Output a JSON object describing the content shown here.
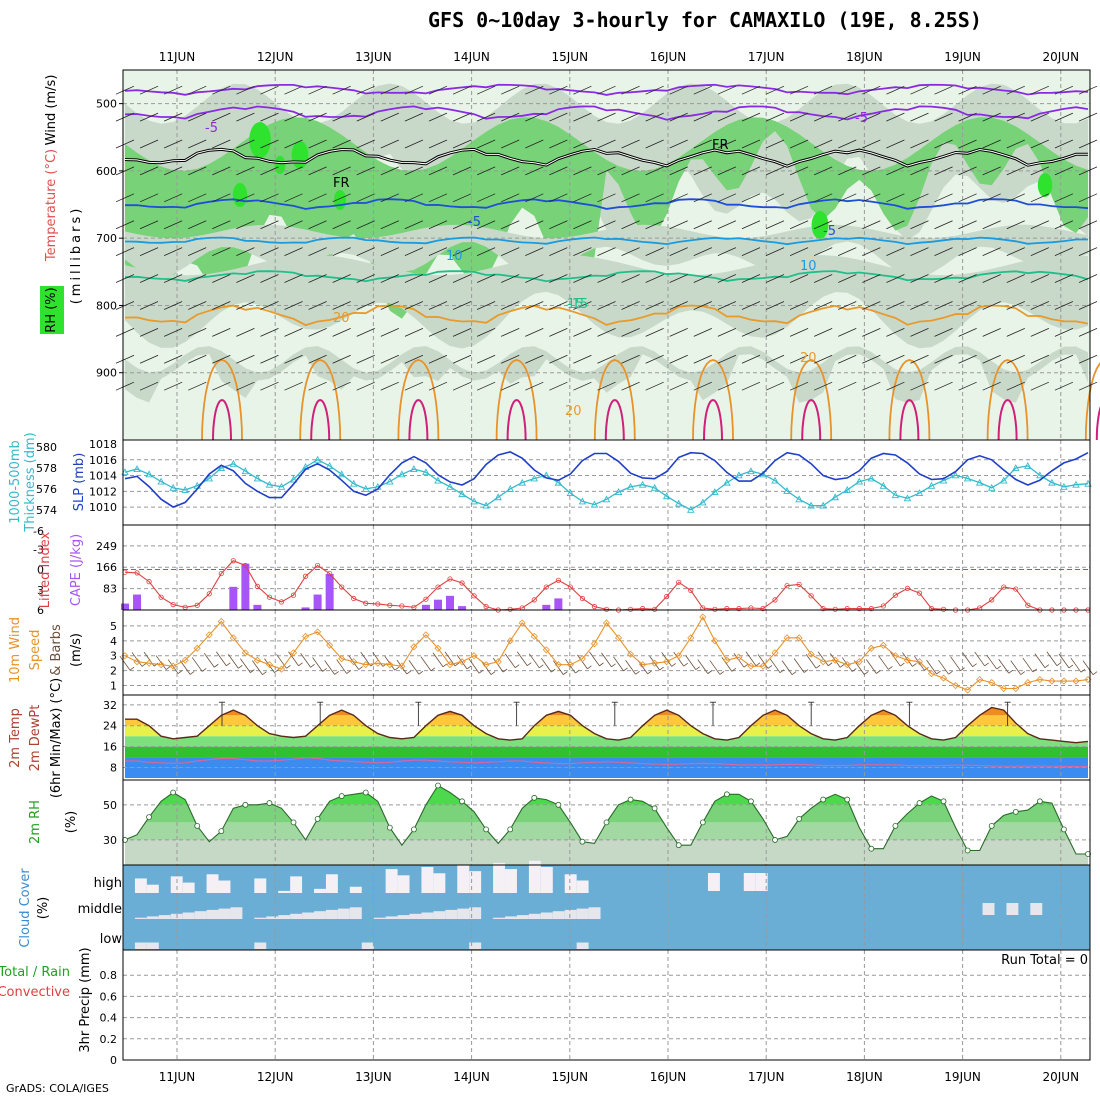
{
  "title": "GFS 0~10day 3-hourly for CAMAXILO (19E, 8.25S)",
  "credit": "GrADS: COLA/IGES",
  "run_total": "Run Total = 0",
  "dates": [
    "11JUN",
    "12JUN",
    "13JUN",
    "14JUN",
    "15JUN",
    "16JUN",
    "17JUN",
    "18JUN",
    "19JUN",
    "20JUN"
  ],
  "colors": {
    "rh_light": "#e8f4e8",
    "rh_mid": "#c9d9c9",
    "rh_green": "#78d278",
    "rh_bright": "#2ee22e",
    "thickness": "#33bbcc",
    "slp": "#1f3fc8",
    "lifted": "#e04040",
    "cape": "#a855f7",
    "wind_speed": "#e8922a",
    "barbs": "#6b4f3a",
    "cloud": "#6aaed6",
    "rh2m": "#6ccf6c"
  },
  "chart_data": [
    {
      "type": "contour",
      "panel": "upper-air",
      "ylabel": "(millibars)",
      "left_labels": [
        "Wind (m/s)",
        "Temperature (°C)",
        "RH (%)"
      ],
      "yticks": [
        500,
        600,
        700,
        800,
        900
      ],
      "ylim": [
        1000,
        450
      ],
      "isotherm_labels": [
        "-5",
        "-5",
        "FR",
        "FR",
        "-5",
        "-5",
        "10",
        "10",
        "-15",
        "15",
        "20",
        "20",
        "20"
      ],
      "rh_shading": [
        "30",
        "50",
        "70",
        "90"
      ]
    },
    {
      "type": "line",
      "panel": "thickness-slp",
      "left_labels": [
        "1000-500mb",
        "Thickness (dm)"
      ],
      "right_labels": [
        "SLP (mb)"
      ],
      "left_ticks": [
        574,
        576,
        578,
        580
      ],
      "right_ticks": [
        1010,
        1012,
        1014,
        1016,
        1018
      ],
      "series": [
        {
          "name": "1000-500mb Thickness (dm)",
          "axis": "left",
          "values": [
            577.6,
            577.9,
            577.4,
            576.7,
            576.1,
            575.9,
            576.3,
            577.0,
            578.0,
            578.4,
            577.7,
            577.0,
            576.4,
            576.2,
            576.9,
            578.1,
            578.8,
            578.2,
            577.4,
            576.5,
            576.0,
            576.2,
            576.7,
            577.4,
            577.9,
            577.6,
            576.8,
            576.2,
            575.5,
            574.8,
            574.4,
            575.2,
            576.0,
            576.6,
            577.0,
            577.3,
            576.6,
            575.6,
            574.8,
            574.5,
            575.0,
            575.7,
            576.2,
            576.4,
            576.1,
            575.3,
            574.6,
            574.0,
            574.7,
            575.7,
            576.6,
            577.3,
            577.7,
            577.4,
            576.8,
            575.8,
            575.0,
            574.4,
            574.4,
            575.2,
            575.9,
            576.7,
            577.0,
            576.3,
            575.4,
            575.1,
            575.6,
            576.3,
            576.8,
            577.3,
            577.0,
            576.6,
            576.1,
            576.8,
            578.0,
            578.2,
            577.3,
            576.6,
            576.2,
            576.4,
            576.5
          ]
        },
        {
          "name": "SLP (mb)",
          "axis": "right",
          "values": [
            1013.6,
            1013.9,
            1012.6,
            1011.0,
            1010.0,
            1010.6,
            1012.3,
            1014.2,
            1015.3,
            1014.6,
            1013.0,
            1012.0,
            1011.2,
            1011.2,
            1012.9,
            1014.8,
            1015.5,
            1014.7,
            1013.4,
            1012.0,
            1011.5,
            1012.3,
            1014.1,
            1015.6,
            1016.4,
            1015.6,
            1014.1,
            1013.2,
            1012.8,
            1013.6,
            1015.4,
            1016.6,
            1017.0,
            1016.2,
            1014.7,
            1013.7,
            1013.4,
            1014.2,
            1015.9,
            1016.8,
            1016.8,
            1015.8,
            1014.3,
            1013.7,
            1013.6,
            1014.5,
            1016.3,
            1016.9,
            1016.8,
            1015.9,
            1014.4,
            1013.3,
            1013.3,
            1014.3,
            1015.9,
            1016.9,
            1016.6,
            1015.5,
            1014.0,
            1013.5,
            1013.7,
            1014.6,
            1016.2,
            1016.8,
            1016.6,
            1015.6,
            1014.2,
            1013.5,
            1013.6,
            1014.5,
            1016.0,
            1016.5,
            1016.0,
            1014.7,
            1013.5,
            1012.8,
            1013.4,
            1014.6,
            1015.6,
            1016.1,
            1016.9
          ]
        }
      ]
    },
    {
      "type": "line",
      "panel": "stability",
      "left_labels": [
        "Lifted Index",
        "CAPE (J/kg)"
      ],
      "lifted_ticks": [
        "-3",
        "0",
        "3",
        "6",
        "6"
      ],
      "cape_ticks": [
        83,
        166,
        249
      ],
      "series": [
        {
          "name": "Lifted Index",
          "axis": "left",
          "values": [
            0.4,
            0.5,
            1.8,
            4.1,
            5.2,
            5.6,
            5.3,
            3.6,
            0.6,
            -1.3,
            -0.6,
            2.5,
            4.1,
            4.8,
            3.8,
            1.0,
            -0.6,
            0.6,
            2.6,
            4.3,
            5.0,
            5.1,
            5.3,
            5.4,
            5.6,
            4.4,
            2.6,
            1.4,
            2.0,
            3.9,
            5.5,
            6.0,
            5.9,
            5.7,
            4.5,
            2.6,
            1.6,
            2.6,
            4.3,
            5.5,
            5.9,
            6.0,
            5.9,
            5.8,
            5.9,
            4.0,
            1.9,
            3.1,
            5.7,
            5.9,
            5.8,
            5.8,
            5.7,
            5.8,
            4.5,
            2.4,
            2.2,
            3.9,
            5.8,
            5.9,
            5.8,
            5.8,
            5.8,
            5.4,
            3.8,
            2.8,
            3.5,
            5.8,
            5.9,
            6.0,
            6.0,
            5.7,
            4.5,
            2.6,
            2.9,
            5.3,
            6.0,
            6.0,
            6.0,
            6.0,
            6.0
          ]
        },
        {
          "name": "CAPE (J/kg)",
          "axis": "right",
          "type": "bar",
          "values": [
            25,
            60,
            0,
            0,
            0,
            0,
            0,
            0,
            0,
            90,
            180,
            20,
            0,
            0,
            0,
            10,
            60,
            140,
            0,
            0,
            0,
            0,
            0,
            0,
            0,
            20,
            40,
            55,
            15,
            0,
            0,
            0,
            0,
            0,
            0,
            20,
            45,
            0,
            0,
            0,
            0,
            0,
            0,
            0,
            0,
            0,
            0,
            0,
            0,
            0,
            0,
            0,
            0,
            0,
            0,
            0,
            0,
            0,
            0,
            0,
            0,
            0,
            0,
            0,
            0,
            0,
            0,
            0,
            0,
            0,
            0,
            0,
            0,
            0,
            0,
            0,
            0,
            0,
            0,
            0,
            0
          ]
        }
      ]
    },
    {
      "type": "line",
      "panel": "10m-wind",
      "left_labels": [
        "10m Wind",
        "Speed",
        "& Barbs",
        "(m/s)"
      ],
      "yticks": [
        1,
        2,
        3,
        4,
        5
      ],
      "series": [
        {
          "name": "10m Wind Speed",
          "values": [
            3.0,
            2.6,
            2.5,
            2.4,
            2.3,
            2.7,
            3.5,
            4.4,
            5.3,
            4.2,
            3.2,
            2.7,
            2.4,
            2.1,
            3.2,
            4.3,
            4.6,
            3.7,
            2.8,
            2.6,
            2.4,
            2.5,
            2.4,
            2.3,
            3.6,
            4.4,
            3.5,
            2.4,
            2.6,
            3.0,
            2.4,
            2.6,
            4.0,
            5.2,
            4.3,
            3.4,
            2.4,
            2.4,
            2.8,
            3.8,
            5.2,
            4.2,
            3.1,
            2.4,
            2.5,
            2.6,
            3.0,
            4.2,
            5.6,
            4.0,
            2.7,
            2.9,
            2.3,
            2.3,
            3.2,
            4.2,
            4.2,
            3.1,
            2.6,
            2.7,
            2.4,
            2.6,
            3.5,
            3.7,
            3.0,
            2.7,
            2.6,
            1.8,
            1.5,
            1.0,
            0.7,
            1.4,
            1.2,
            0.8,
            0.8,
            1.2,
            1.4,
            1.3,
            1.3,
            1.3,
            1.4
          ]
        }
      ]
    },
    {
      "type": "area",
      "panel": "2m-temp",
      "left_labels": [
        "2m Temp",
        "2m DewPt",
        "(6hr Min/Max) (°C)"
      ],
      "yticks": [
        8,
        16,
        24,
        32
      ],
      "series": [
        {
          "name": "2m Temp",
          "values": [
            26.5,
            26.5,
            24,
            20,
            19,
            19.5,
            20,
            24,
            28,
            30,
            28,
            24,
            21,
            20,
            19.5,
            20,
            24,
            28,
            30,
            28,
            24,
            21,
            19.5,
            19,
            19.5,
            24,
            28,
            29.5,
            28,
            24,
            21,
            19,
            18.5,
            19,
            24,
            28,
            29.5,
            28,
            24,
            21,
            19,
            18.5,
            19.5,
            24,
            28,
            30,
            28,
            24,
            21,
            19,
            18.5,
            19.5,
            24,
            28,
            30,
            28,
            24,
            21,
            19,
            18.5,
            19.5,
            24,
            28,
            30,
            28,
            24,
            21,
            19,
            18.5,
            19.5,
            24,
            28,
            31,
            30,
            25,
            21,
            19,
            18.5,
            18,
            17.5,
            18
          ]
        },
        {
          "name": "2m DewPt",
          "values": [
            10.5,
            10.5,
            10.0,
            9.8,
            9.6,
            9.8,
            10.5,
            11.0,
            11.5,
            11.5,
            11.0,
            10.5,
            10.5,
            10.8,
            11.2,
            11.8,
            11.5,
            10.8,
            10.5,
            10.3,
            10.0,
            9.8,
            10.0,
            10.5,
            10.8,
            10.8,
            10.5,
            10.2,
            10.0,
            9.8,
            10.0,
            10.2,
            10.5,
            10.5,
            10.0,
            9.8,
            9.5,
            9.5,
            9.8,
            10.0,
            10.2,
            10.0,
            9.8,
            9.5,
            9.3,
            9.2,
            9.3,
            9.5,
            9.6,
            9.5,
            9.3,
            9.0,
            9.0,
            9.0,
            9.1,
            9.2,
            9.2,
            9.0,
            8.8,
            8.8,
            8.8,
            9.0,
            9.1,
            9.1,
            9.0,
            8.8,
            8.7,
            8.7,
            8.8,
            8.9,
            8.9,
            8.8,
            8.6,
            8.5,
            8.5,
            8.6,
            8.6,
            8.5,
            8.4,
            8.4,
            8.4
          ]
        }
      ]
    },
    {
      "type": "area",
      "panel": "2m-rh",
      "left_labels": [
        "2m RH",
        "(%)"
      ],
      "yticks": [
        30,
        50
      ],
      "series": [
        {
          "name": "2m RH",
          "values": [
            30,
            33,
            43,
            52,
            57,
            53,
            38,
            29,
            35,
            48,
            50,
            50,
            51,
            48,
            40,
            30,
            42,
            52,
            55,
            56,
            57,
            52,
            37,
            27,
            36,
            50,
            61,
            57,
            52,
            46,
            36,
            28,
            36,
            48,
            54,
            53,
            50,
            40,
            29,
            28,
            40,
            50,
            53,
            52,
            48,
            37,
            27,
            27,
            40,
            52,
            56,
            56,
            52,
            42,
            30,
            32,
            42,
            48,
            53,
            56,
            53,
            37,
            25,
            25,
            38,
            45,
            51,
            55,
            52,
            37,
            24,
            24,
            38,
            44,
            46,
            47,
            52,
            51,
            36,
            22,
            22
          ]
        }
      ]
    },
    {
      "type": "heatmap",
      "panel": "cloud-cover",
      "left_labels": [
        "Cloud Cover",
        "(%)"
      ],
      "rows": [
        "high",
        "middle",
        "low"
      ]
    },
    {
      "type": "bar",
      "panel": "precip",
      "left_labels": [
        "Total / Rain",
        "Convective",
        "3hr Precip (mm)"
      ],
      "yticks": [
        "0",
        "0.2",
        "0.4",
        "0.6",
        "0.8"
      ],
      "ylim": [
        0,
        1
      ],
      "values": []
    }
  ]
}
